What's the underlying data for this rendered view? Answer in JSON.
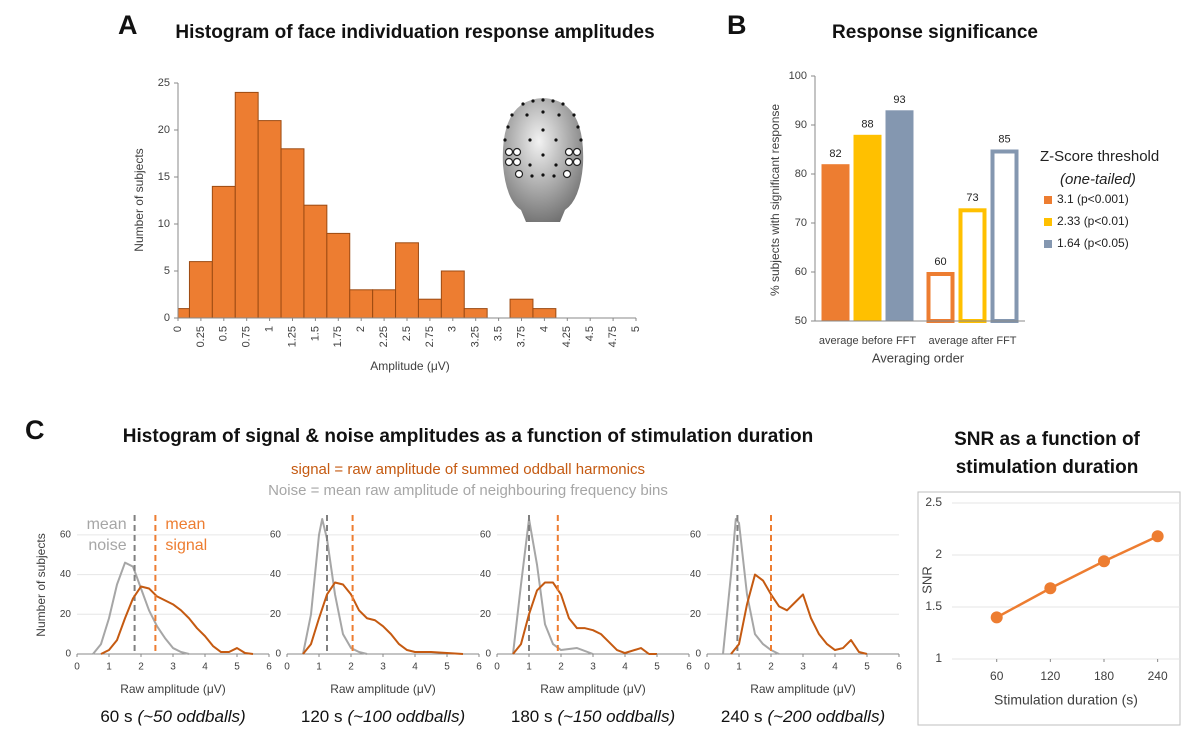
{
  "chart_data": [
    {
      "panel": "A",
      "type": "histogram",
      "title": "Histogram of face individuation response amplitudes",
      "xlabel": "Amplitude (μV)",
      "ylabel": "Number of subjects",
      "bins": [
        -0.125,
        0.125,
        0.375,
        0.625,
        0.875,
        1.125,
        1.375,
        1.625,
        1.875,
        2.125,
        2.375,
        2.625,
        2.875,
        3.125,
        3.375,
        3.625,
        3.875,
        4.125
      ],
      "values": [
        1,
        6,
        14,
        24,
        21,
        18,
        12,
        9,
        3,
        3,
        8,
        2,
        5,
        1,
        0,
        2,
        1
      ],
      "color": "#ED7D31",
      "edgecolor": "#9C4A12",
      "xlim": [
        0,
        5
      ],
      "xticks": [
        0,
        0.25,
        0.5,
        0.75,
        1,
        1.25,
        1.5,
        1.75,
        2,
        2.25,
        2.5,
        2.75,
        3,
        3.25,
        3.5,
        3.75,
        4,
        4.25,
        4.5,
        4.75,
        5
      ],
      "ylim": [
        0,
        25
      ],
      "yticks": [
        0,
        5,
        10,
        15,
        20,
        25
      ]
    },
    {
      "panel": "B",
      "type": "bar",
      "title": "Response significance",
      "xlabel": "Averaging order",
      "ylabel": "% subjects with significant response",
      "categories": [
        "average before FFT",
        "average after FFT"
      ],
      "fill_style": [
        "solid",
        "outline"
      ],
      "series": [
        {
          "name": "3.1 (p<0.001)",
          "color": "#ED7D31",
          "values": [
            82,
            60
          ]
        },
        {
          "name": "2.33 (p<0.01)",
          "color": "#FFC000",
          "values": [
            88,
            73
          ]
        },
        {
          "name": "1.64 (p<0.05)",
          "color": "#8497B0",
          "values": [
            93,
            85
          ]
        }
      ],
      "ylim": [
        50,
        100
      ],
      "yticks": [
        50,
        60,
        70,
        80,
        90,
        100
      ],
      "legend_title": [
        "Z-Score threshold",
        "(one-tailed)"
      ],
      "legend": "right"
    },
    {
      "panel": "C",
      "type": "line",
      "title": "Histogram of signal & noise amplitudes as a function of stimulation duration",
      "notes": [
        {
          "text": "signal = raw amplitude of summed oddball harmonics",
          "color": "#C55A11"
        },
        {
          "text": "Noise = mean raw amplitude of neighbouring frequency bins",
          "color": "#A6A6A6"
        }
      ],
      "ylabel": "Number of subjects",
      "xlabel": "Raw amplitude (μV)",
      "caption": [
        "60 s",
        "(~50 oddballs)"
      ],
      "annotations": [
        {
          "lines": [
            "mean",
            "noise"
          ],
          "color": "#A6A6A6"
        },
        {
          "lines": [
            "mean",
            "signal"
          ],
          "color": "#ED7D31"
        }
      ],
      "series": [
        {
          "color": "#A6A6A6",
          "mean": 1.8,
          "x": [
            0.5,
            0.75,
            1,
            1.25,
            1.5,
            1.75,
            2,
            2.25,
            2.5,
            2.75,
            3,
            3.25,
            3.5
          ],
          "values": [
            0,
            5,
            18,
            35,
            46,
            44,
            33,
            22,
            14,
            8,
            3,
            1,
            0
          ]
        },
        {
          "color": "#C55A11",
          "mean": 2.45,
          "x": [
            0.75,
            1,
            1.25,
            1.5,
            1.75,
            2,
            2.25,
            2.5,
            2.75,
            3,
            3.25,
            3.5,
            3.75,
            4,
            4.25,
            4.5,
            4.75,
            5,
            5.25,
            5.5
          ],
          "values": [
            0,
            2,
            7,
            18,
            28,
            34,
            33,
            29,
            27,
            25,
            22,
            18,
            13,
            9,
            4,
            1,
            1,
            3,
            0.5,
            0
          ]
        }
      ],
      "xlim": [
        0,
        6
      ],
      "xticks": [
        0,
        1,
        2,
        3,
        4,
        5,
        6
      ],
      "ylim": [
        0,
        70
      ],
      "yticks": [
        0,
        20,
        40,
        60
      ],
      "grid": true
    },
    {
      "type": "line",
      "xlabel": "Raw amplitude (μV)",
      "caption": [
        "120 s",
        "(~100 oddballs)"
      ],
      "series": [
        {
          "color": "#A6A6A6",
          "mean": 1.25,
          "x": [
            0.5,
            0.75,
            1,
            1.1,
            1.25,
            1.5,
            1.75,
            2,
            2.25,
            2.5
          ],
          "values": [
            0,
            20,
            60,
            68,
            58,
            30,
            10,
            3,
            1,
            0
          ]
        },
        {
          "color": "#C55A11",
          "mean": 2.05,
          "x": [
            0.5,
            0.75,
            1,
            1.25,
            1.5,
            1.75,
            2,
            2.25,
            2.5,
            2.75,
            3,
            3.25,
            3.5,
            3.75,
            4,
            4.5,
            5,
            5.5
          ],
          "values": [
            0,
            5,
            18,
            30,
            36,
            35,
            30,
            22,
            18,
            17,
            14,
            10,
            5,
            2,
            1,
            1,
            0.5,
            0
          ]
        }
      ],
      "xlim": [
        0,
        6
      ],
      "xticks": [
        0,
        1,
        2,
        3,
        4,
        5,
        6
      ],
      "ylim": [
        0,
        70
      ],
      "yticks": [
        0,
        20,
        40,
        60
      ],
      "grid": true
    },
    {
      "type": "line",
      "xlabel": "Raw amplitude (μV)",
      "caption": [
        "180 s",
        "(~150 oddballs)"
      ],
      "series": [
        {
          "color": "#A6A6A6",
          "mean": 1,
          "x": [
            0.5,
            0.75,
            1,
            1.25,
            1.5,
            1.75,
            2,
            2.5,
            3
          ],
          "values": [
            0,
            35,
            68,
            45,
            15,
            5,
            2,
            3,
            0
          ]
        },
        {
          "color": "#C55A11",
          "mean": 1.9,
          "x": [
            0.5,
            0.75,
            1,
            1.25,
            1.5,
            1.75,
            2,
            2.25,
            2.5,
            2.75,
            3,
            3.25,
            3.5,
            3.75,
            4,
            4.5,
            4.75,
            5
          ],
          "values": [
            0,
            5,
            20,
            32,
            36,
            36,
            30,
            18,
            13,
            13,
            12,
            10,
            6,
            2,
            0.5,
            3,
            0,
            0
          ]
        }
      ],
      "xlim": [
        0,
        6
      ],
      "xticks": [
        0,
        1,
        2,
        3,
        4,
        5,
        6
      ],
      "ylim": [
        0,
        70
      ],
      "yticks": [
        0,
        20,
        40,
        60
      ],
      "grid": true
    },
    {
      "type": "line",
      "xlabel": "Raw amplitude (μV)",
      "caption": [
        "240 s",
        "(~200 oddballs)"
      ],
      "series": [
        {
          "color": "#A6A6A6",
          "mean": 0.95,
          "x": [
            0.5,
            0.75,
            0.9,
            1,
            1.25,
            1.5,
            1.75,
            2,
            2.25
          ],
          "values": [
            0,
            40,
            68,
            66,
            30,
            10,
            5,
            2,
            0
          ]
        },
        {
          "color": "#C55A11",
          "mean": 2,
          "x": [
            0.75,
            1,
            1.25,
            1.5,
            1.75,
            2,
            2.25,
            2.5,
            2.75,
            3,
            3.25,
            3.5,
            3.75,
            4,
            4.25,
            4.5,
            4.75,
            5
          ],
          "values": [
            0,
            5,
            25,
            40,
            37,
            30,
            24,
            22,
            26,
            30,
            18,
            10,
            5,
            2,
            3,
            7,
            1,
            0
          ]
        }
      ],
      "xlim": [
        0,
        6
      ],
      "xticks": [
        0,
        1,
        2,
        3,
        4,
        5,
        6
      ],
      "ylim": [
        0,
        70
      ],
      "yticks": [
        0,
        20,
        40,
        60
      ],
      "grid": true
    },
    {
      "type": "line",
      "title": [
        "SNR as a function of",
        "stimulation duration"
      ],
      "xlabel": "Stimulation duration (s)",
      "ylabel": "SNR",
      "x": [
        60,
        120,
        180,
        240
      ],
      "values": [
        1.4,
        1.68,
        1.94,
        2.18
      ],
      "errors": [
        0.02,
        0.02,
        0.02,
        0.05
      ],
      "color": "#ED7D31",
      "xlim": [
        10,
        265
      ],
      "xticks": [
        60,
        120,
        180,
        240
      ],
      "ylim": [
        1,
        2.5
      ],
      "yticks": [
        1,
        1.5,
        2,
        2.5
      ],
      "grid": true
    }
  ]
}
